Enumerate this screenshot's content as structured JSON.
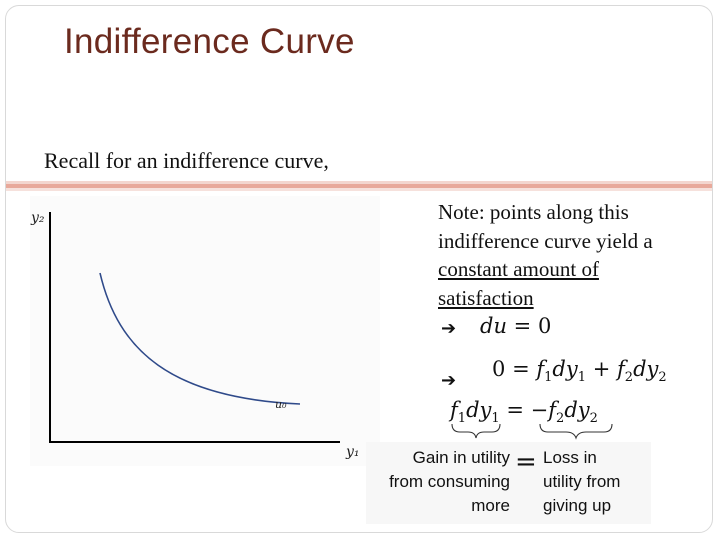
{
  "title": "Indifference Curve",
  "recall_text": "Recall for an indifference curve,",
  "graph": {
    "y_axis_label": "y₂",
    "x_axis_label": "y₁",
    "curve_label": "u₀"
  },
  "note": {
    "line1": "Note: points along this",
    "line2": "indifference curve yield a",
    "underlined1": "constant amount of",
    "underlined2": "satisfaction"
  },
  "arrow_glyph": "➔",
  "equations": {
    "eq1_lhs": "du",
    "eq1_rel": "=",
    "eq1_rhs": "0",
    "eq2_lhs": "0",
    "eq2_rel": "=",
    "eq2_t1": "f",
    "eq2_s1": "1",
    "eq2_t2": "dy",
    "eq2_s2": "1",
    "eq2_plus": "+",
    "eq2_t3": "f",
    "eq2_s3": "2",
    "eq2_t4": "dy",
    "eq2_s4": "2",
    "eq3_t1": "f",
    "eq3_s1": "1",
    "eq3_t2": "dy",
    "eq3_s2": "1",
    "eq3_rel": "=",
    "eq3_neg": "−",
    "eq3_t3": "f",
    "eq3_s3": "2",
    "eq3_t4": "dy",
    "eq3_s4": "2"
  },
  "labels": {
    "left_1": "Gain in utility",
    "left_2": "from consuming",
    "left_3": "more",
    "equals": "=",
    "right_1": "Loss in",
    "right_2": "utility from",
    "right_3": "giving up"
  },
  "colors": {
    "title": "#6b2a1e",
    "curve": "#2f4a8a",
    "rule": "#e8a99b"
  }
}
